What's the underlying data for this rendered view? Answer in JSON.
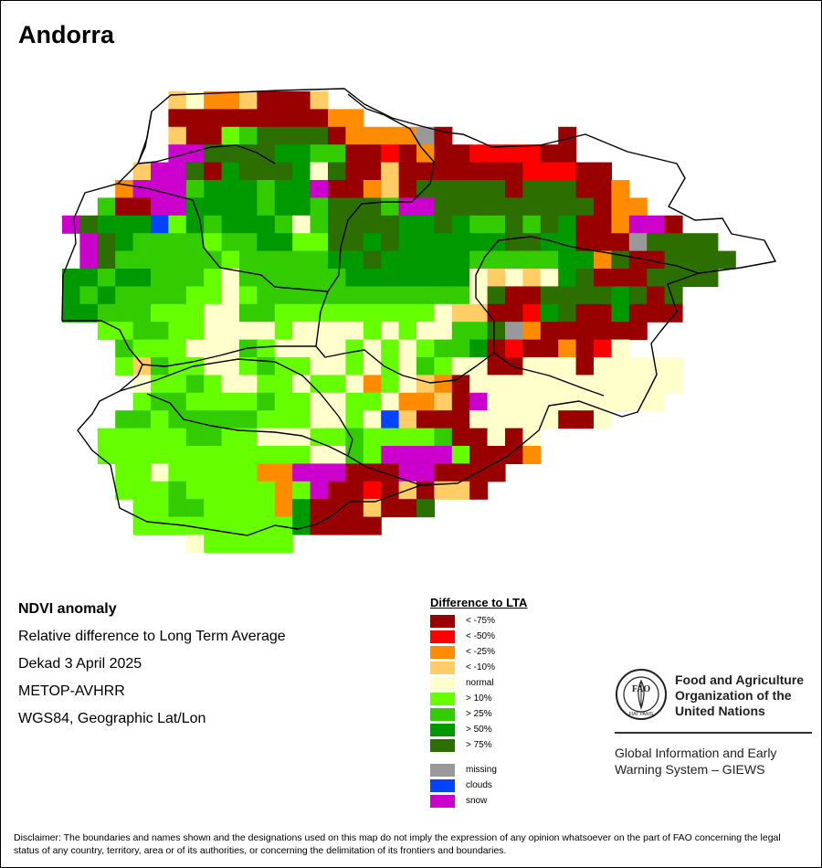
{
  "title": "Andorra",
  "info": {
    "product": "NDVI anomaly",
    "description": "Relative difference to Long Term Average",
    "period": "Dekad 3 April 2025",
    "sensor": "METOP-AVHRR",
    "projection": "WGS84, Geographic Lat/Lon"
  },
  "legend": {
    "title": "Difference to LTA",
    "classes": [
      {
        "label": "< -75%",
        "color": "#990000"
      },
      {
        "label": "< -50%",
        "color": "#ff0000"
      },
      {
        "label": "< -25%",
        "color": "#ff8c00"
      },
      {
        "label": "< -10%",
        "color": "#ffcc66"
      },
      {
        "label": "normal",
        "color": "#ffffcc"
      },
      {
        "label": "> 10%",
        "color": "#66ff00"
      },
      {
        "label": "> 25%",
        "color": "#33cc00"
      },
      {
        "label": "> 50%",
        "color": "#009900"
      },
      {
        "label": "> 75%",
        "color": "#2d6e00"
      }
    ],
    "extra": [
      {
        "label": "missing",
        "color": "#999999"
      },
      {
        "label": "clouds",
        "color": "#0044ff"
      },
      {
        "label": "snow",
        "color": "#cc00cc"
      }
    ]
  },
  "org": {
    "logo_text": "FAO",
    "logo_motto": "FIAT PANIS",
    "name_line1": "Food and Agriculture",
    "name_line2": "Organization of the",
    "name_line3": "United Nations",
    "giews_line1": "Global Information and Early",
    "giews_line2": "Warning System – GIEWS"
  },
  "disclaimer": "Disclaimer: The boundaries and names shown and the designations used on this map do not imply the expression of any opinion whatsoever on the part of FAO concerning the legal status of any country, territory, area or of its authorities, or concerning the delimitation of its frontiers and boundaries."
}
